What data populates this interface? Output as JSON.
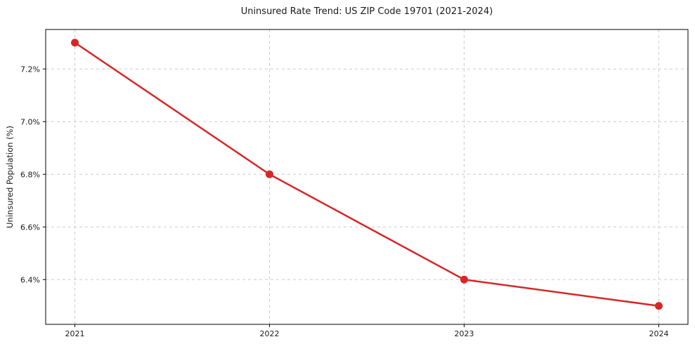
{
  "chart_data": {
    "type": "line",
    "title": "Uninsured Rate Trend: US ZIP Code 19701 (2021-2024)",
    "xlabel": "",
    "ylabel": "Uninsured Population (%)",
    "x": [
      2021,
      2022,
      2023,
      2024
    ],
    "values": [
      7.3,
      6.8,
      6.4,
      6.3
    ],
    "xticks": [
      2021,
      2022,
      2023,
      2024
    ],
    "xticklabels": [
      "2021",
      "2022",
      "2023",
      "2024"
    ],
    "yticks": [
      6.4,
      6.6,
      6.8,
      7.0,
      7.2
    ],
    "yticklabels": [
      "6.4%",
      "6.6%",
      "6.8%",
      "7.0%",
      "7.2%"
    ],
    "xlim": [
      2020.85,
      2024.15
    ],
    "ylim": [
      6.23,
      7.35
    ],
    "grid": true,
    "grid_style": "dashed",
    "legend": "none",
    "marker": "circle",
    "colors": {
      "line": "#d62728",
      "marker": "#d62728",
      "grid": "#cccccc",
      "axis": "#000000",
      "text": "#1a1a1a",
      "background": "#ffffff"
    }
  }
}
